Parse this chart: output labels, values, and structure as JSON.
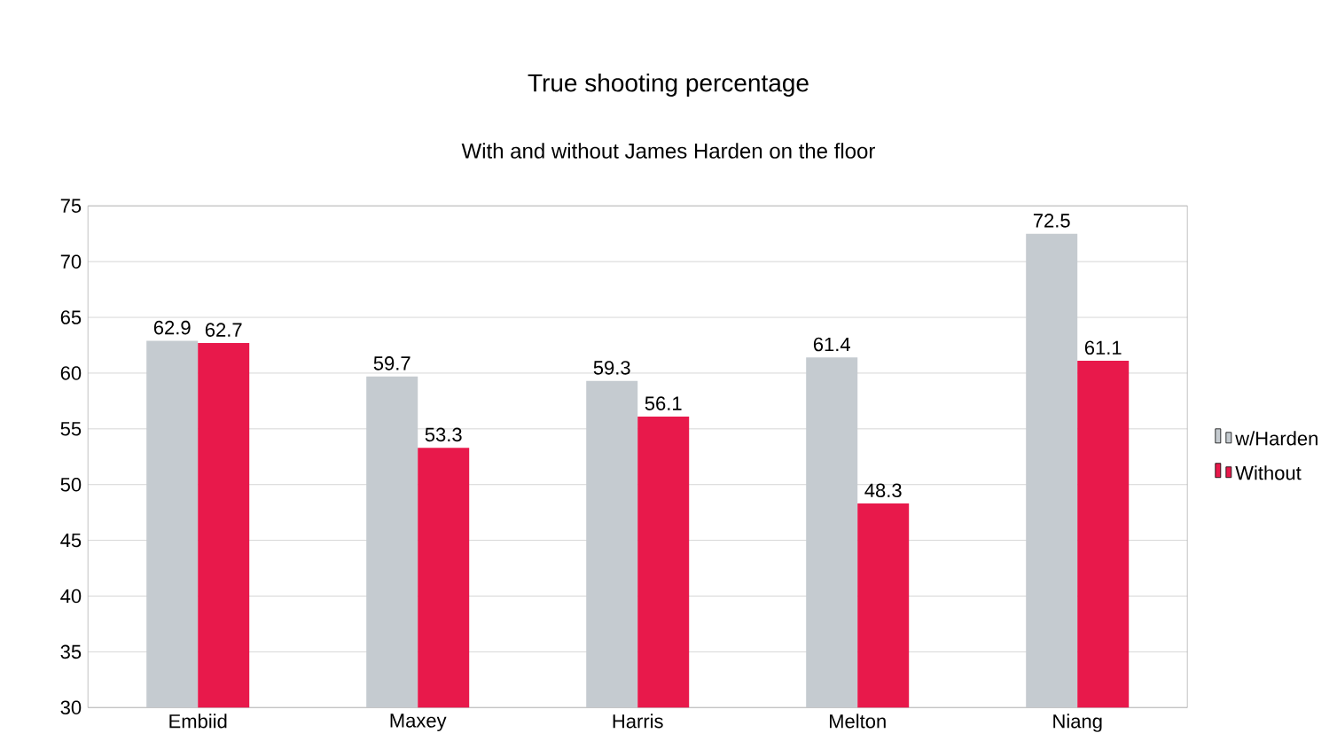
{
  "chart_data": {
    "type": "bar",
    "title": "True shooting percentage",
    "subtitle": "With and without James Harden on the floor",
    "categories": [
      "Embiid",
      "Maxey",
      "Harris",
      "Melton",
      "Niang"
    ],
    "series": [
      {
        "name": "w/Harden",
        "color": "#c5cbd0",
        "values": [
          62.9,
          59.7,
          59.3,
          61.4,
          72.5
        ]
      },
      {
        "name": "Without",
        "color": "#e8194b",
        "values": [
          62.7,
          53.3,
          56.1,
          48.3,
          61.1
        ]
      }
    ],
    "ylim": [
      30,
      75
    ],
    "yticks": [
      30,
      35,
      40,
      45,
      50,
      55,
      60,
      65,
      70,
      75
    ],
    "grid": "y",
    "legend": "right",
    "data_labels": true
  }
}
